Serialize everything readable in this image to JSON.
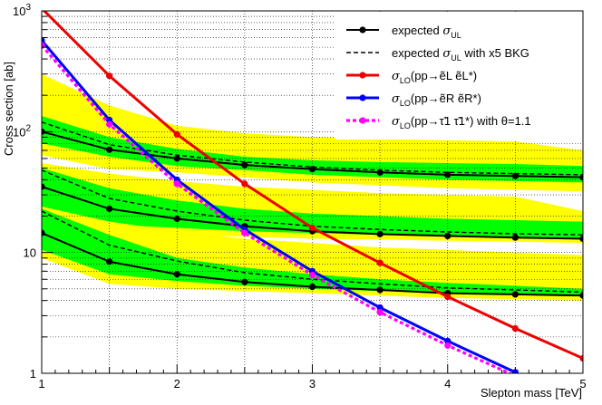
{
  "chart_data": {
    "type": "line",
    "title": "",
    "xlabel": "Slepton mass [TeV]",
    "ylabel": "Cross section [ab]",
    "xlim": [
      1,
      5
    ],
    "ylim": [
      1,
      1000
    ],
    "yscale": "log",
    "grid": true,
    "legend_position": "top-right",
    "x_ticks": [
      "1",
      "2",
      "3",
      "4",
      "5"
    ],
    "y_ticks": [
      "1",
      "10",
      "10^2",
      "10^3"
    ],
    "bands": [
      {
        "group": "high",
        "kind": "2sigma",
        "color": "#ffff00",
        "x": [
          1,
          1.5,
          2,
          2.5,
          3,
          3.5,
          4,
          4.5,
          5
        ],
        "lo": [
          64,
          49,
          46,
          42,
          38,
          36,
          34,
          33,
          32
        ],
        "hi": [
          300,
          165,
          112,
          97,
          90,
          87,
          85,
          83,
          70
        ]
      },
      {
        "group": "high",
        "kind": "1sigma",
        "color": "#00ff00",
        "x": [
          1,
          1.5,
          2,
          2.5,
          3,
          3.5,
          4,
          4.5,
          5
        ],
        "lo": [
          80,
          62,
          52,
          48,
          44,
          42,
          40,
          39,
          38
        ],
        "hi": [
          135,
          90,
          72,
          62,
          58,
          56,
          55,
          54,
          52
        ]
      },
      {
        "group": "mid",
        "kind": "2sigma",
        "color": "#ffff00",
        "x": [
          1,
          1.5,
          2,
          2.5,
          3,
          3.5,
          4,
          4.5,
          5
        ],
        "lo": [
          15,
          14.5,
          14,
          13.5,
          13,
          12.8,
          12.5,
          12.3,
          12
        ],
        "hi": [
          55,
          45,
          39,
          35,
          33,
          31,
          30,
          29,
          22
        ]
      },
      {
        "group": "mid",
        "kind": "1sigma",
        "color": "#00ff00",
        "x": [
          1,
          1.5,
          2,
          2.5,
          3,
          3.5,
          4,
          4.5,
          5
        ],
        "lo": [
          22,
          17,
          16,
          15,
          14.5,
          14,
          13.8,
          13.5,
          13.2
        ],
        "hi": [
          50,
          34,
          27,
          23,
          21,
          20,
          19,
          18.5,
          18
        ]
      },
      {
        "group": "low",
        "kind": "2sigma",
        "color": "#ffff00",
        "x": [
          1,
          1.5,
          2,
          2.5,
          3,
          3.5,
          4,
          4.5,
          5
        ],
        "lo": [
          9,
          5.5,
          5,
          4.8,
          4.6,
          4.4,
          4.2,
          4.1,
          4.0
        ],
        "hi": [
          24,
          18,
          15,
          13,
          12,
          11,
          10.5,
          10,
          9.5
        ]
      },
      {
        "group": "low",
        "kind": "1sigma",
        "color": "#00ff00",
        "x": [
          1,
          1.5,
          2,
          2.5,
          3,
          3.5,
          4,
          4.5,
          5
        ],
        "lo": [
          10.5,
          6.6,
          5.8,
          5.3,
          5.0,
          4.8,
          4.6,
          4.5,
          4.4
        ],
        "hi": [
          23,
          14,
          9,
          7.5,
          6.6,
          6.0,
          5.6,
          5.3,
          5.0
        ]
      }
    ],
    "series": [
      {
        "name": "expected σUL",
        "legend": true,
        "color": "#000000",
        "style": "solid",
        "marker": true,
        "x": [
          1,
          1.5,
          2,
          2.5,
          3,
          3.5,
          4,
          4.5,
          5
        ],
        "values": [
          100,
          71,
          60,
          53,
          49,
          46,
          44,
          43,
          42
        ]
      },
      {
        "legend": false,
        "color": "#000000",
        "style": "solid",
        "marker": true,
        "x": [
          1,
          1.5,
          2,
          2.5,
          3,
          3.5,
          4,
          4.5,
          5
        ],
        "values": [
          35,
          23,
          19,
          16.5,
          15,
          14.2,
          13.7,
          13.3,
          13
        ]
      },
      {
        "legend": false,
        "color": "#000000",
        "style": "solid",
        "marker": true,
        "x": [
          1,
          1.5,
          2,
          2.5,
          3,
          3.5,
          4,
          4.5,
          5
        ],
        "values": [
          14.5,
          8.4,
          6.6,
          5.7,
          5.2,
          4.9,
          4.6,
          4.5,
          4.4
        ]
      },
      {
        "name": "expected σUL with x5 BKG",
        "legend": true,
        "color": "#000000",
        "style": "dashed",
        "marker": false,
        "x": [
          1,
          1.5,
          2,
          2.5,
          3,
          3.5,
          4,
          4.5,
          5
        ],
        "values": [
          120,
          78,
          64,
          56,
          51,
          48,
          46,
          45,
          44
        ]
      },
      {
        "legend": false,
        "color": "#000000",
        "style": "dashed",
        "marker": false,
        "x": [
          1,
          1.5,
          2,
          2.5,
          3,
          3.5,
          4,
          4.5,
          5
        ],
        "values": [
          48,
          28,
          22,
          18.5,
          16.5,
          15.5,
          14.8,
          14.3,
          14
        ]
      },
      {
        "legend": false,
        "color": "#000000",
        "style": "dashed",
        "marker": false,
        "x": [
          1,
          1.5,
          2,
          2.5,
          3,
          3.5,
          4,
          4.5,
          5
        ],
        "values": [
          22,
          11.5,
          8.5,
          6.8,
          6.0,
          5.5,
          5.1,
          4.9,
          4.7
        ]
      },
      {
        "name": "σLO(pp→ẽL ẽL*)",
        "legend": true,
        "color": "#ee0000",
        "style": "solid",
        "marker": true,
        "x": [
          1,
          1.5,
          2,
          2.5,
          3,
          3.5,
          4,
          4.5,
          5
        ],
        "values": [
          1050,
          290,
          95,
          37,
          16,
          8.2,
          4.3,
          2.35,
          1.33
        ]
      },
      {
        "name": "σLO(pp→ẽR ẽR*)",
        "legend": true,
        "color": "#0000ff",
        "style": "solid",
        "marker": true,
        "x": [
          1,
          1.5,
          2,
          2.5,
          3,
          3.5,
          4,
          4.5
        ],
        "values": [
          570,
          125,
          40,
          15.5,
          7.0,
          3.5,
          1.85,
          1.02
        ]
      },
      {
        "name": "σLO(pp→τ̃1 τ̃1*) with θ=1.1",
        "legend": true,
        "color": "#ff00ff",
        "style": "dotted",
        "marker": true,
        "x": [
          1,
          1.5,
          2,
          2.5,
          3,
          3.5,
          4,
          4.5
        ],
        "values": [
          520,
          115,
          37,
          14.5,
          6.5,
          3.2,
          1.7,
          0.95
        ]
      }
    ]
  },
  "legend": {
    "entries": [
      {
        "main": "expected ",
        "sym": "σ",
        "sub1": "UL",
        "tail": ""
      },
      {
        "main": "expected ",
        "sym": "σ",
        "sub1": "UL",
        "tail": " with x5 BKG"
      },
      {
        "main": "",
        "sym": "σ",
        "sub1": "LO",
        "tail": "(pp→ẽL ẽL*)"
      },
      {
        "main": "",
        "sym": "σ",
        "sub1": "LO",
        "tail": "(pp→ẽR ẽR*)"
      },
      {
        "main": "",
        "sym": "σ",
        "sub1": "LO",
        "tail": "(pp→τ̃1 τ̃1*) with θ=1.1"
      }
    ]
  }
}
